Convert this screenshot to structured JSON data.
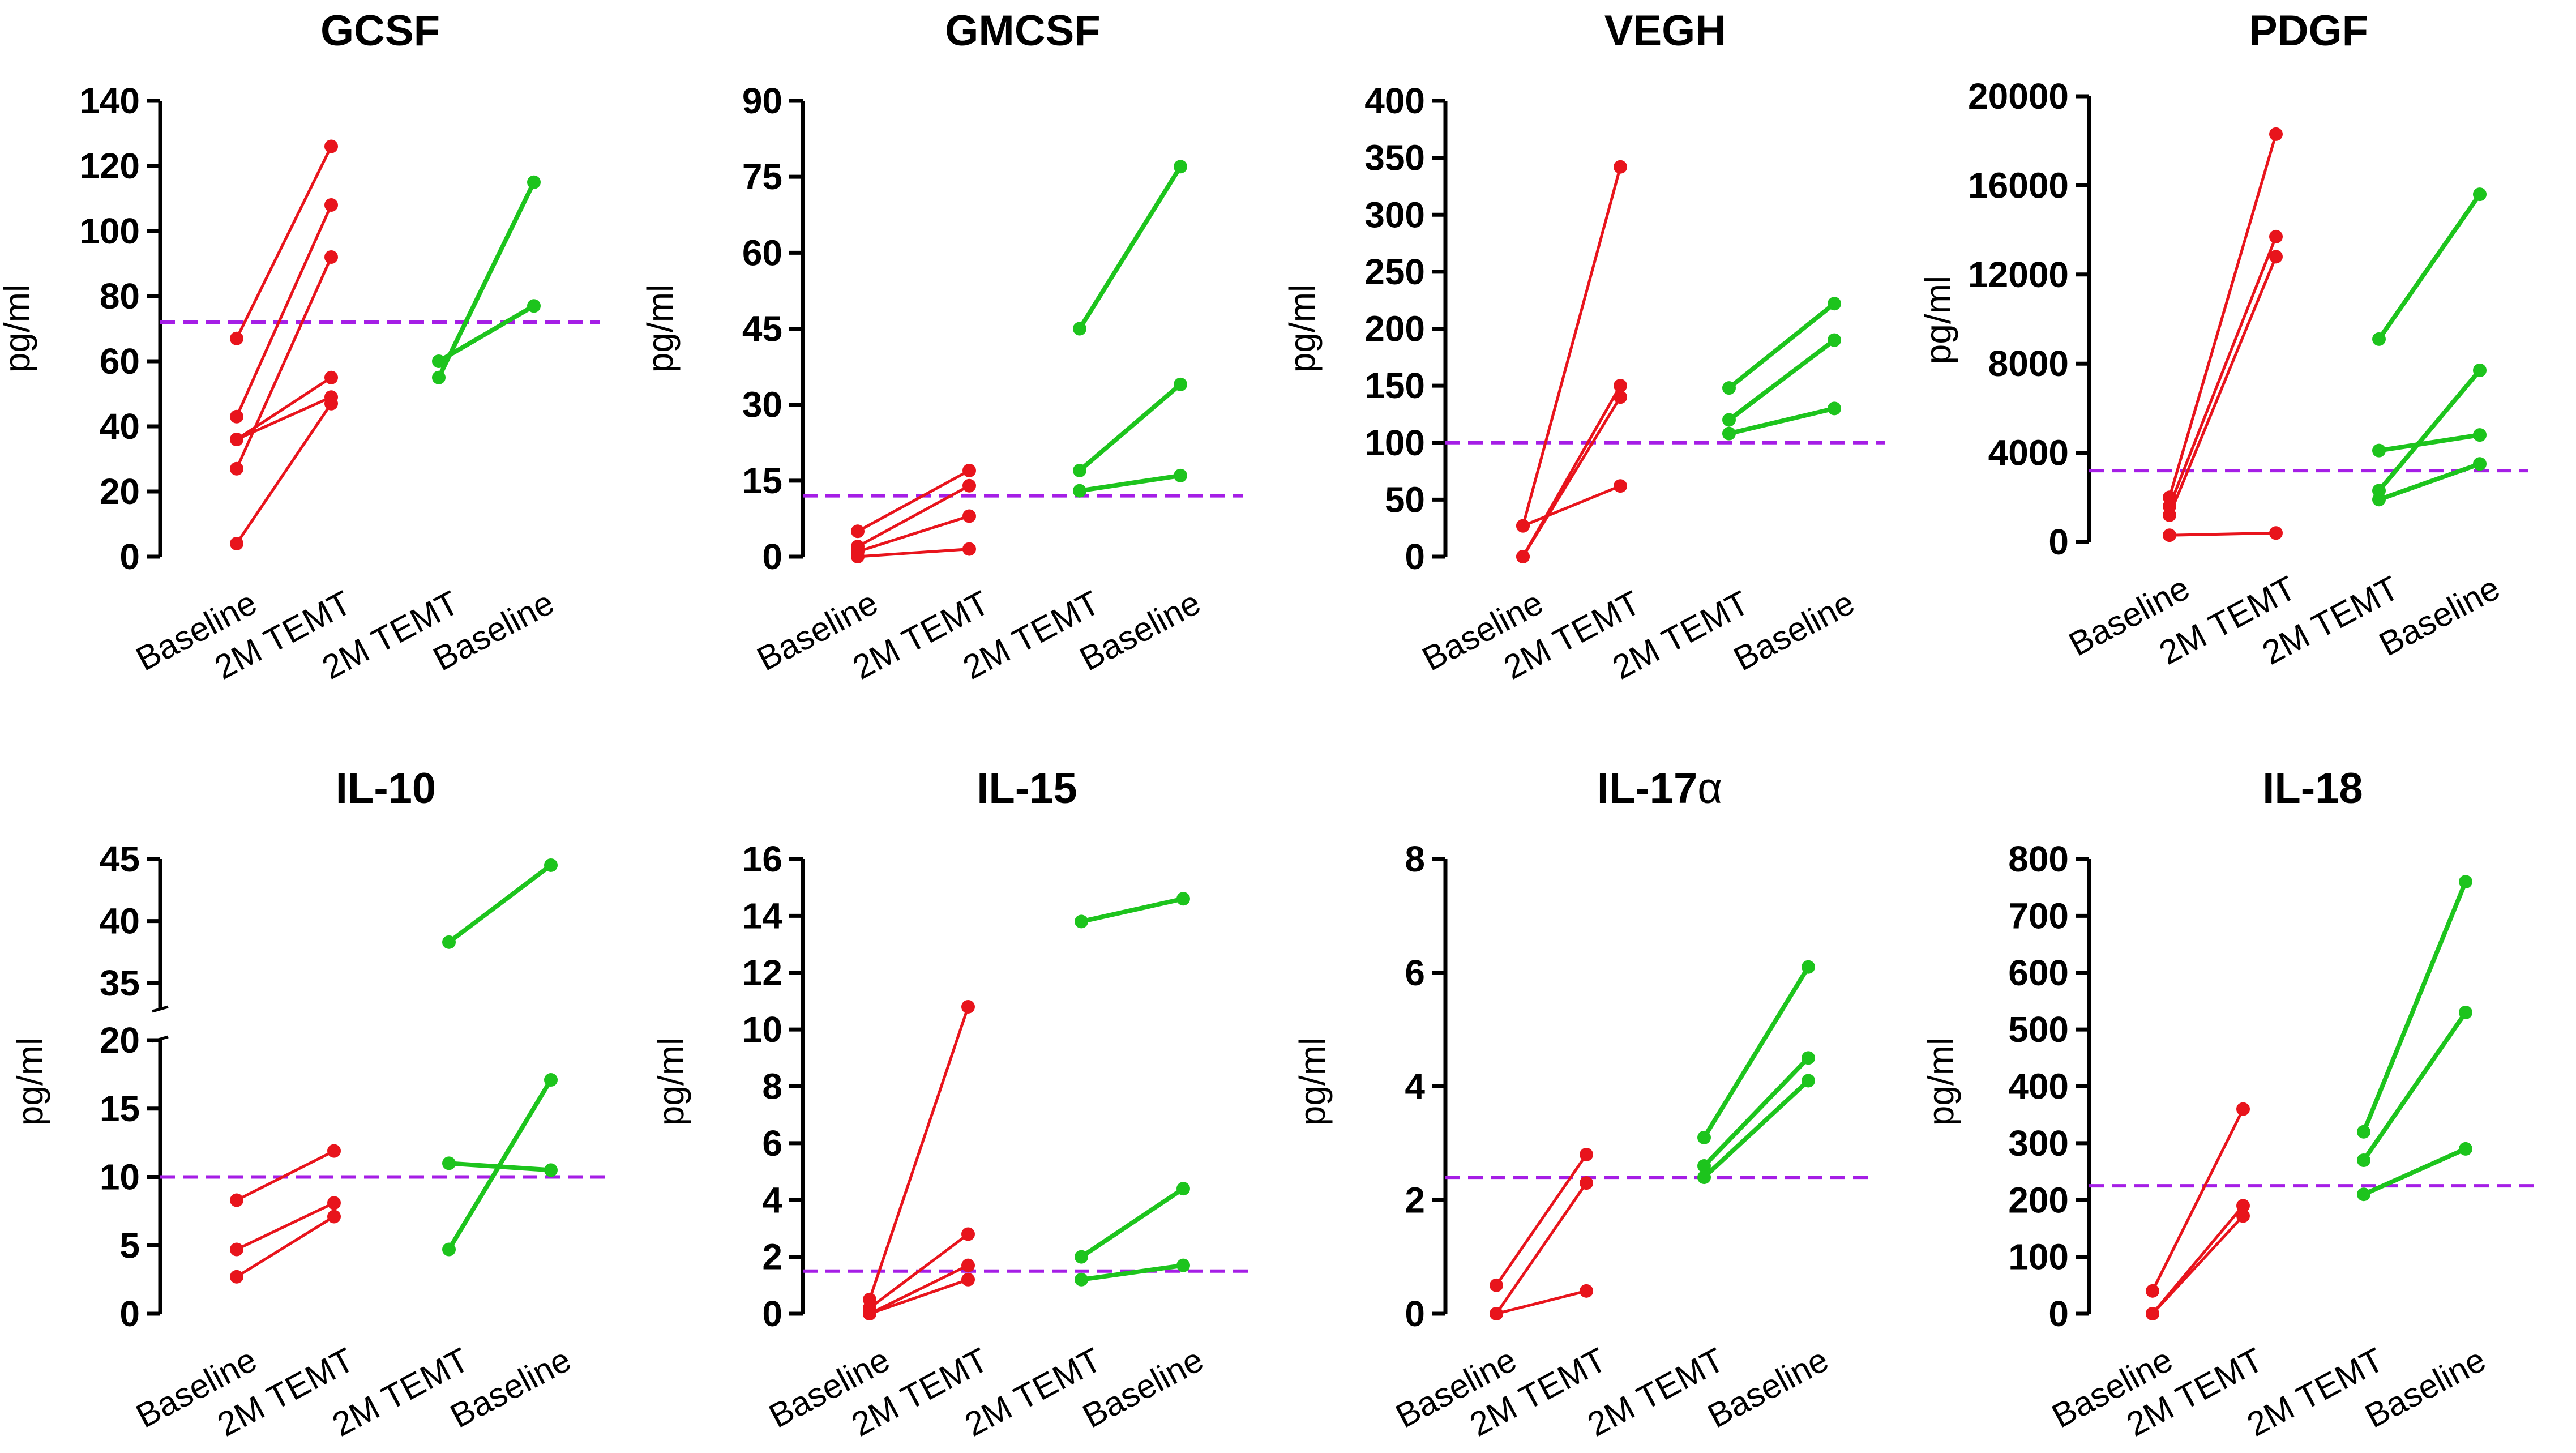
{
  "colors": {
    "red": "#e8141c",
    "green": "#1dc41d",
    "reference": "#a51ee6",
    "axis": "#000000"
  },
  "chart_data": [
    {
      "type": "line",
      "title": "GCSF",
      "ylabel": "pg/ml",
      "categories": [
        "Baseline",
        "2M TEMT",
        "2M TEMT",
        "Baseline"
      ],
      "ylim": [
        0,
        140
      ],
      "yticks": [
        0,
        20,
        40,
        60,
        80,
        100,
        120,
        140
      ],
      "reference_line": 72,
      "series": [
        {
          "name": "red-1",
          "group": "red",
          "x": [
            0,
            1
          ],
          "values": [
            67,
            126
          ]
        },
        {
          "name": "red-2",
          "group": "red",
          "x": [
            0,
            1
          ],
          "values": [
            43,
            108
          ]
        },
        {
          "name": "red-3",
          "group": "red",
          "x": [
            0,
            1
          ],
          "values": [
            36,
            55
          ]
        },
        {
          "name": "red-4",
          "group": "red",
          "x": [
            0,
            1
          ],
          "values": [
            27,
            92
          ]
        },
        {
          "name": "red-5",
          "group": "red",
          "x": [
            0,
            1
          ],
          "values": [
            36,
            49
          ]
        },
        {
          "name": "red-6",
          "group": "red",
          "x": [
            0,
            1
          ],
          "values": [
            4,
            47
          ]
        },
        {
          "name": "green-1",
          "group": "green",
          "x": [
            2,
            3
          ],
          "values": [
            55,
            115
          ]
        },
        {
          "name": "green-2",
          "group": "green",
          "x": [
            2,
            3
          ],
          "values": [
            60,
            77
          ]
        }
      ]
    },
    {
      "type": "line",
      "title": "GMCSF",
      "ylabel": "pg/ml",
      "categories": [
        "Baseline",
        "2M TEMT",
        "2M TEMT",
        "Baseline"
      ],
      "ylim": [
        0,
        90
      ],
      "yticks": [
        0,
        15,
        30,
        45,
        60,
        75,
        90
      ],
      "reference_line": 12,
      "series": [
        {
          "name": "red-1",
          "group": "red",
          "x": [
            0,
            1
          ],
          "values": [
            5,
            17
          ]
        },
        {
          "name": "red-2",
          "group": "red",
          "x": [
            0,
            1
          ],
          "values": [
            2,
            14
          ]
        },
        {
          "name": "red-3",
          "group": "red",
          "x": [
            0,
            1
          ],
          "values": [
            1,
            8
          ]
        },
        {
          "name": "red-4",
          "group": "red",
          "x": [
            0,
            1
          ],
          "values": [
            0,
            1.5
          ]
        },
        {
          "name": "green-1",
          "group": "green",
          "x": [
            2,
            3
          ],
          "values": [
            45,
            77
          ]
        },
        {
          "name": "green-2",
          "group": "green",
          "x": [
            2,
            3
          ],
          "values": [
            17,
            34
          ]
        },
        {
          "name": "green-3",
          "group": "green",
          "x": [
            2,
            3
          ],
          "values": [
            13,
            16
          ]
        }
      ]
    },
    {
      "type": "line",
      "title": "VEGH",
      "ylabel": "pg/ml",
      "categories": [
        "Baseline",
        "2M TEMT",
        "2M TEMT",
        "Baseline"
      ],
      "ylim": [
        0,
        400
      ],
      "yticks": [
        0,
        50,
        100,
        150,
        200,
        250,
        300,
        350,
        400
      ],
      "reference_line": 100,
      "series": [
        {
          "name": "red-1",
          "group": "red",
          "x": [
            0,
            1
          ],
          "values": [
            27,
            342
          ]
        },
        {
          "name": "red-2",
          "group": "red",
          "x": [
            0,
            1
          ],
          "values": [
            0,
            150
          ]
        },
        {
          "name": "red-3",
          "group": "red",
          "x": [
            0,
            1
          ],
          "values": [
            0,
            140
          ]
        },
        {
          "name": "red-4",
          "group": "red",
          "x": [
            0,
            1
          ],
          "values": [
            27,
            62
          ]
        },
        {
          "name": "green-1",
          "group": "green",
          "x": [
            2,
            3
          ],
          "values": [
            148,
            222
          ]
        },
        {
          "name": "green-2",
          "group": "green",
          "x": [
            2,
            3
          ],
          "values": [
            120,
            190
          ]
        },
        {
          "name": "green-3",
          "group": "green",
          "x": [
            2,
            3
          ],
          "values": [
            108,
            130
          ]
        }
      ]
    },
    {
      "type": "line",
      "title": "PDGF",
      "ylabel": "pg/ml",
      "categories": [
        "Baseline",
        "2M TEMT",
        "2M TEMT",
        "Baseline"
      ],
      "ylim": [
        0,
        20000
      ],
      "yticks": [
        0,
        4000,
        8000,
        12000,
        16000,
        20000
      ],
      "reference_line": 3200,
      "series": [
        {
          "name": "red-1",
          "group": "red",
          "x": [
            0,
            1
          ],
          "values": [
            2000,
            18300
          ]
        },
        {
          "name": "red-2",
          "group": "red",
          "x": [
            0,
            1
          ],
          "values": [
            1600,
            13700
          ]
        },
        {
          "name": "red-3",
          "group": "red",
          "x": [
            0,
            1
          ],
          "values": [
            1200,
            12800
          ]
        },
        {
          "name": "red-4",
          "group": "red",
          "x": [
            0,
            1
          ],
          "values": [
            300,
            400
          ]
        },
        {
          "name": "green-1",
          "group": "green",
          "x": [
            2,
            3
          ],
          "values": [
            9100,
            15600
          ]
        },
        {
          "name": "green-2",
          "group": "green",
          "x": [
            2,
            3
          ],
          "values": [
            2300,
            7700
          ]
        },
        {
          "name": "green-3",
          "group": "green",
          "x": [
            2,
            3
          ],
          "values": [
            4100,
            4800
          ]
        },
        {
          "name": "green-4",
          "group": "green",
          "x": [
            2,
            3
          ],
          "values": [
            1900,
            3500
          ]
        }
      ]
    },
    {
      "type": "line",
      "title": "IL-10",
      "ylabel": "pg/ml",
      "categories": [
        "Baseline",
        "2M TEMT",
        "2M TEMT",
        "Baseline"
      ],
      "broken_axis": true,
      "segments": [
        {
          "ylim": [
            0,
            20
          ],
          "yticks": [
            0,
            5,
            10,
            15,
            20
          ]
        },
        {
          "ylim": [
            33,
            45
          ],
          "yticks": [
            35,
            40,
            45
          ]
        }
      ],
      "reference_line": 10,
      "series": [
        {
          "name": "red-1",
          "group": "red",
          "x": [
            0,
            1
          ],
          "values": [
            8.3,
            11.9
          ]
        },
        {
          "name": "red-2",
          "group": "red",
          "x": [
            0,
            1
          ],
          "values": [
            4.7,
            8.1
          ]
        },
        {
          "name": "red-3",
          "group": "red",
          "x": [
            0,
            1
          ],
          "values": [
            2.7,
            7.1
          ]
        },
        {
          "name": "green-1",
          "group": "green",
          "x": [
            2,
            3
          ],
          "values": [
            38.3,
            44.5
          ]
        },
        {
          "name": "green-2",
          "group": "green",
          "x": [
            2,
            3
          ],
          "values": [
            11.0,
            10.5
          ]
        },
        {
          "name": "green-3",
          "group": "green",
          "x": [
            2,
            3
          ],
          "values": [
            4.7,
            17.1
          ]
        }
      ]
    },
    {
      "type": "line",
      "title": "IL-15",
      "ylabel": "pg/ml",
      "categories": [
        "Baseline",
        "2M TEMT",
        "2M TEMT",
        "Baseline"
      ],
      "ylim": [
        0,
        16
      ],
      "yticks": [
        0,
        2,
        4,
        6,
        8,
        10,
        12,
        14,
        16
      ],
      "reference_line": 1.5,
      "series": [
        {
          "name": "red-1",
          "group": "red",
          "x": [
            0,
            1
          ],
          "values": [
            0.5,
            10.8
          ]
        },
        {
          "name": "red-2",
          "group": "red",
          "x": [
            0,
            1
          ],
          "values": [
            0.2,
            2.8
          ]
        },
        {
          "name": "red-3",
          "group": "red",
          "x": [
            0,
            1
          ],
          "values": [
            0.0,
            1.7
          ]
        },
        {
          "name": "red-4",
          "group": "red",
          "x": [
            0,
            1
          ],
          "values": [
            0.0,
            1.2
          ]
        },
        {
          "name": "green-1",
          "group": "green",
          "x": [
            2,
            3
          ],
          "values": [
            13.8,
            14.6
          ]
        },
        {
          "name": "green-2",
          "group": "green",
          "x": [
            2,
            3
          ],
          "values": [
            2.0,
            4.4
          ]
        },
        {
          "name": "green-3",
          "group": "green",
          "x": [
            2,
            3
          ],
          "values": [
            1.2,
            1.7
          ]
        }
      ]
    },
    {
      "type": "line",
      "title": "IL-17",
      "title_symbol": "α",
      "ylabel": "pg/ml",
      "categories": [
        "Baseline",
        "2M TEMT",
        "2M TEMT",
        "Baseline"
      ],
      "ylim": [
        0,
        8
      ],
      "yticks": [
        0,
        2,
        4,
        6,
        8
      ],
      "reference_line": 2.4,
      "series": [
        {
          "name": "red-1",
          "group": "red",
          "x": [
            0,
            1
          ],
          "values": [
            0.5,
            2.8
          ]
        },
        {
          "name": "red-2",
          "group": "red",
          "x": [
            0,
            1
          ],
          "values": [
            0.0,
            2.3
          ]
        },
        {
          "name": "red-3",
          "group": "red",
          "x": [
            0,
            1
          ],
          "values": [
            0.0,
            0.4
          ]
        },
        {
          "name": "green-1",
          "group": "green",
          "x": [
            2,
            3
          ],
          "values": [
            3.1,
            6.1
          ]
        },
        {
          "name": "green-2",
          "group": "green",
          "x": [
            2,
            3
          ],
          "values": [
            2.6,
            4.5
          ]
        },
        {
          "name": "green-3",
          "group": "green",
          "x": [
            2,
            3
          ],
          "values": [
            2.4,
            4.1
          ]
        }
      ]
    },
    {
      "type": "line",
      "title": "IL-18",
      "ylabel": "pg/ml",
      "categories": [
        "Baseline",
        "2M TEMT",
        "2M TEMT",
        "Baseline"
      ],
      "ylim": [
        0,
        800
      ],
      "yticks": [
        0,
        100,
        200,
        300,
        400,
        500,
        600,
        700,
        800
      ],
      "reference_line": 225,
      "series": [
        {
          "name": "red-1",
          "group": "red",
          "x": [
            0,
            1
          ],
          "values": [
            40,
            360
          ]
        },
        {
          "name": "red-2",
          "group": "red",
          "x": [
            0,
            1
          ],
          "values": [
            0,
            190
          ]
        },
        {
          "name": "red-3",
          "group": "red",
          "x": [
            0,
            1
          ],
          "values": [
            0,
            172
          ]
        },
        {
          "name": "green-1",
          "group": "green",
          "x": [
            2,
            3
          ],
          "values": [
            320,
            760
          ]
        },
        {
          "name": "green-2",
          "group": "green",
          "x": [
            2,
            3
          ],
          "values": [
            270,
            530
          ]
        },
        {
          "name": "green-3",
          "group": "green",
          "x": [
            2,
            3
          ],
          "values": [
            210,
            290
          ]
        }
      ]
    }
  ]
}
